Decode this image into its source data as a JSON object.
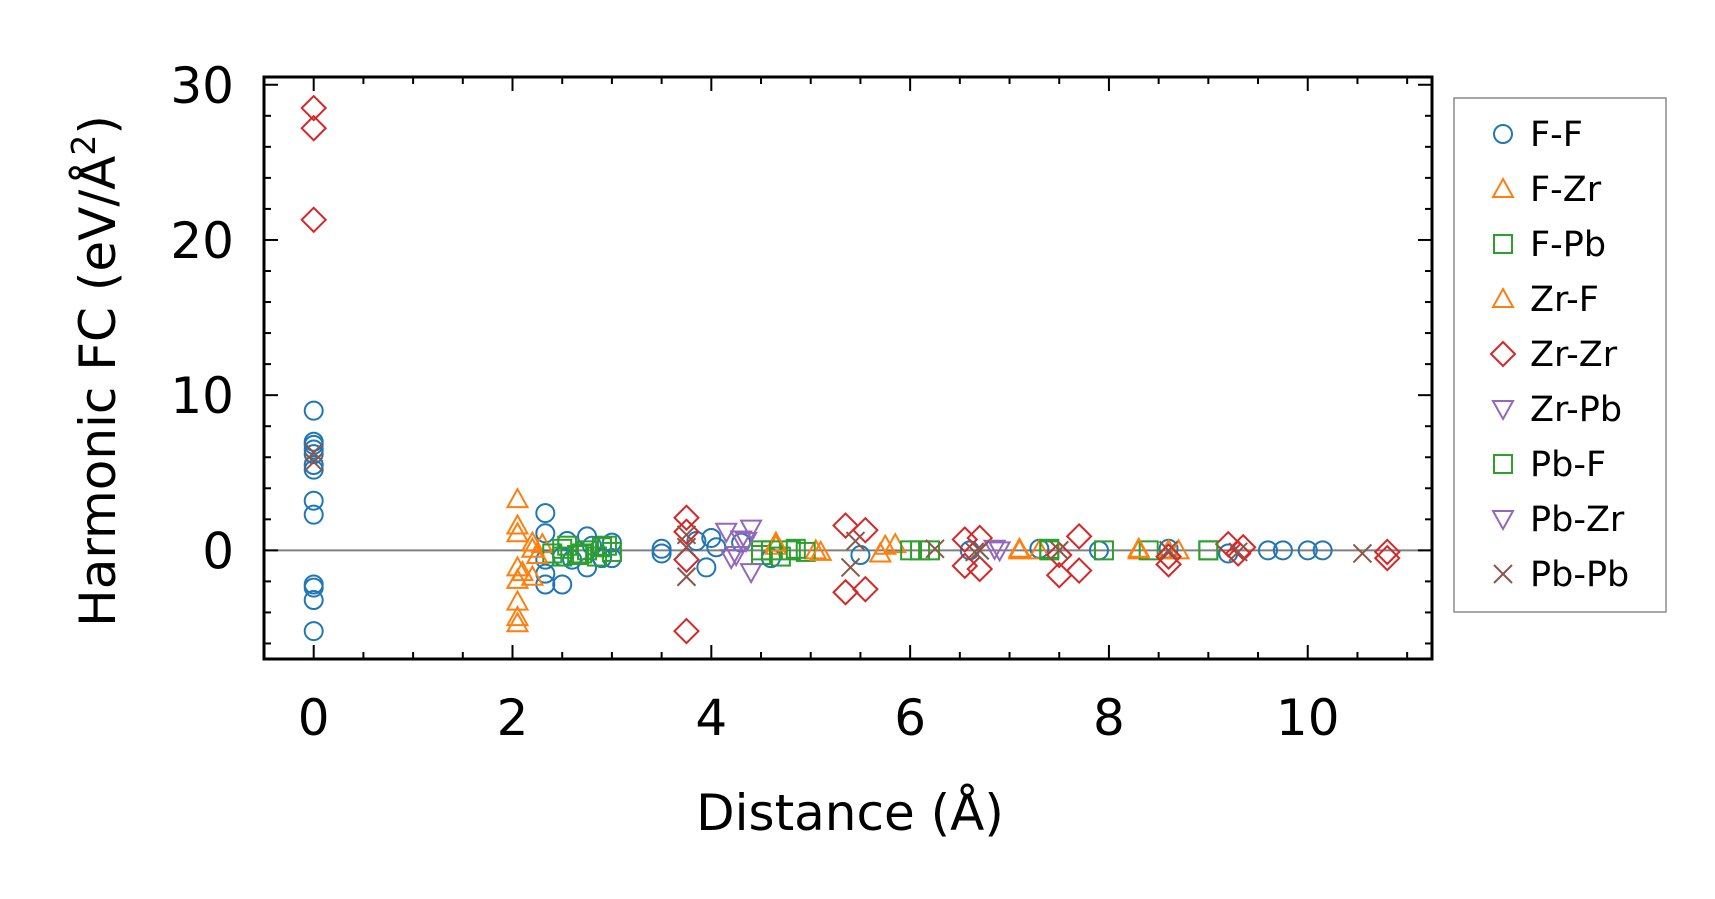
{
  "chart_data": {
    "type": "scatter",
    "xlabel": "Distance (Å)",
    "ylabel_main": "Harmonic FC (eV/Å",
    "ylabel_sup": "2",
    "ylabel_end": ")",
    "xlim": [
      -0.5,
      11.25
    ],
    "ylim": [
      -7,
      30.5
    ],
    "x_ticks": [
      0,
      2,
      4,
      6,
      8,
      10
    ],
    "x_tick_labels": [
      "0",
      "2",
      "4",
      "6",
      "8",
      "10"
    ],
    "y_ticks": [
      0,
      10,
      20,
      30
    ],
    "y_tick_labels": [
      "0",
      "10",
      "20",
      "30"
    ],
    "zero_line": true,
    "grid": false,
    "legend_position": "outside-right",
    "series": [
      {
        "name": "F-F",
        "marker": "circle",
        "color": "#1f77b4",
        "points": [
          [
            0,
            9
          ],
          [
            0,
            7
          ],
          [
            0,
            6.8
          ],
          [
            0,
            6.5
          ],
          [
            0,
            6.2
          ],
          [
            0,
            5.5
          ],
          [
            0,
            5.2
          ],
          [
            0,
            3.2
          ],
          [
            0,
            2.3
          ],
          [
            0,
            -2.2
          ],
          [
            0,
            -2.4
          ],
          [
            0,
            -3.2
          ],
          [
            0,
            -5.2
          ],
          [
            2.33,
            2.4
          ],
          [
            2.33,
            1.1
          ],
          [
            2.33,
            -0.6
          ],
          [
            2.33,
            -1.5
          ],
          [
            2.33,
            -2.2
          ],
          [
            2.5,
            -0.4
          ],
          [
            2.5,
            -2.2
          ],
          [
            2.55,
            0.6
          ],
          [
            2.6,
            -0.6
          ],
          [
            2.75,
            0.9
          ],
          [
            2.75,
            -1.1
          ],
          [
            2.8,
            0.3
          ],
          [
            2.9,
            -0.5
          ],
          [
            3.0,
            0.5
          ],
          [
            3.0,
            -0.5
          ],
          [
            3.5,
            0.1
          ],
          [
            3.5,
            -0.2
          ],
          [
            3.85,
            0.6
          ],
          [
            3.95,
            -1.1
          ],
          [
            4.0,
            0.8
          ],
          [
            4.05,
            0.2
          ],
          [
            4.3,
            0.5
          ],
          [
            4.6,
            -0.5
          ],
          [
            5.5,
            -0.3
          ],
          [
            6.6,
            0.0
          ],
          [
            7.3,
            0.1
          ],
          [
            7.9,
            0.0
          ],
          [
            8.6,
            0.1
          ],
          [
            9.2,
            -0.2
          ],
          [
            9.6,
            0.0
          ],
          [
            9.75,
            0.0
          ],
          [
            10.0,
            0.0
          ],
          [
            10.15,
            0.0
          ]
        ]
      },
      {
        "name": "F-Zr",
        "marker": "triangle-up",
        "color": "#ff7f0e",
        "points": [
          [
            2.05,
            3.3
          ],
          [
            2.05,
            1.6
          ],
          [
            2.05,
            1.1
          ],
          [
            2.05,
            -1.1
          ],
          [
            2.05,
            -1.9
          ],
          [
            2.05,
            -3.3
          ],
          [
            2.05,
            -4.3
          ],
          [
            2.05,
            -4.7
          ],
          [
            2.1,
            -1.4
          ],
          [
            2.2,
            0.5
          ],
          [
            2.2,
            -1.7
          ],
          [
            2.3,
            0.4
          ],
          [
            4.65,
            0.3
          ],
          [
            5.05,
            0.0
          ],
          [
            5.7,
            -0.2
          ],
          [
            5.85,
            0.4
          ],
          [
            7.1,
            0.0
          ],
          [
            7.3,
            0.0
          ],
          [
            8.3,
            0.0
          ],
          [
            8.6,
            0.0
          ]
        ]
      },
      {
        "name": "F-Pb",
        "marker": "square",
        "color": "#2ca02c",
        "points": [
          [
            2.4,
            -0.2
          ],
          [
            2.5,
            -0.4
          ],
          [
            2.55,
            0.3
          ],
          [
            2.65,
            -0.3
          ],
          [
            2.75,
            0.0
          ],
          [
            2.85,
            -0.4
          ],
          [
            2.95,
            0.3
          ],
          [
            3.0,
            -0.1
          ],
          [
            4.5,
            -0.3
          ],
          [
            4.6,
            0.0
          ],
          [
            4.7,
            -0.4
          ],
          [
            4.8,
            0.0
          ],
          [
            4.95,
            -0.1
          ],
          [
            6.1,
            0.0
          ],
          [
            6.2,
            0.0
          ],
          [
            7.4,
            0.0
          ],
          [
            7.95,
            0.0
          ],
          [
            8.4,
            0.0
          ],
          [
            9.0,
            0.0
          ]
        ]
      },
      {
        "name": "Zr-F",
        "marker": "triangle-up",
        "color": "#ff7f0e",
        "points": [
          [
            2.2,
            0.1
          ],
          [
            2.25,
            -0.3
          ],
          [
            4.65,
            0.5
          ],
          [
            5.1,
            -0.1
          ],
          [
            5.75,
            0.3
          ],
          [
            7.1,
            0.1
          ],
          [
            8.3,
            0.1
          ],
          [
            8.7,
            0.0
          ]
        ]
      },
      {
        "name": "Zr-Zr",
        "marker": "diamond",
        "color": "#d62728",
        "points": [
          [
            0,
            28.5
          ],
          [
            0,
            27.2
          ],
          [
            0,
            21.3
          ],
          [
            3.75,
            2.1
          ],
          [
            3.75,
            1.2
          ],
          [
            3.75,
            -0.6
          ],
          [
            3.75,
            -5.2
          ],
          [
            5.35,
            1.6
          ],
          [
            5.35,
            -2.7
          ],
          [
            5.55,
            1.3
          ],
          [
            5.55,
            -2.5
          ],
          [
            6.55,
            0.7
          ],
          [
            6.55,
            -1.0
          ],
          [
            6.7,
            0.8
          ],
          [
            6.7,
            -1.2
          ],
          [
            7.5,
            -0.3
          ],
          [
            7.5,
            -1.6
          ],
          [
            7.7,
            0.9
          ],
          [
            7.7,
            -1.3
          ],
          [
            8.6,
            -0.4
          ],
          [
            8.6,
            -0.9
          ],
          [
            9.2,
            0.4
          ],
          [
            9.3,
            -0.2
          ],
          [
            9.35,
            0.2
          ],
          [
            10.8,
            -0.1
          ],
          [
            10.8,
            -0.5
          ]
        ]
      },
      {
        "name": "Zr-Pb",
        "marker": "triangle-down",
        "color": "#9467bd",
        "points": [
          [
            4.15,
            1.2
          ],
          [
            4.2,
            -0.5
          ],
          [
            4.3,
            0.7
          ],
          [
            4.4,
            1.4
          ],
          [
            4.4,
            -1.4
          ],
          [
            6.85,
            0.1
          ]
        ]
      },
      {
        "name": "Pb-F",
        "marker": "square",
        "color": "#2ca02c",
        "points": [
          [
            2.5,
            0.1
          ],
          [
            2.7,
            -0.2
          ],
          [
            2.9,
            0.2
          ],
          [
            4.5,
            0.0
          ],
          [
            4.85,
            0.1
          ],
          [
            6.0,
            0.0
          ],
          [
            7.4,
            0.1
          ],
          [
            9.0,
            0.0
          ]
        ]
      },
      {
        "name": "Pb-Zr",
        "marker": "triangle-down",
        "color": "#9467bd",
        "points": [
          [
            4.25,
            -0.3
          ],
          [
            4.35,
            0.6
          ],
          [
            6.9,
            0.0
          ]
        ]
      },
      {
        "name": "Pb-Pb",
        "marker": "x",
        "color": "#8c564b",
        "points": [
          [
            0,
            6.3
          ],
          [
            0,
            5.7
          ],
          [
            3.75,
            1.0
          ],
          [
            3.75,
            0.2
          ],
          [
            3.75,
            -1.7
          ],
          [
            5.4,
            -1.1
          ],
          [
            5.45,
            0.6
          ],
          [
            6.25,
            0.1
          ],
          [
            6.65,
            -0.1
          ],
          [
            6.7,
            0.0
          ],
          [
            7.5,
            0.0
          ],
          [
            8.6,
            0.0
          ],
          [
            9.3,
            -0.1
          ],
          [
            10.55,
            -0.2
          ]
        ]
      }
    ]
  }
}
